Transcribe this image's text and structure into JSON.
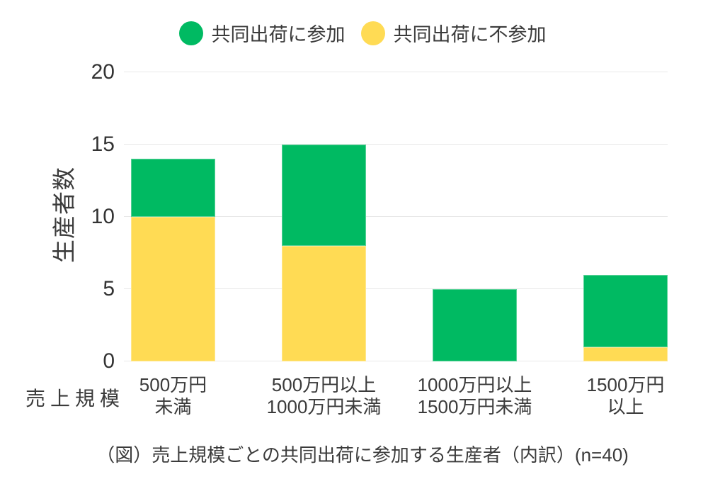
{
  "legend": {
    "items": [
      {
        "label": "共同出荷に参加",
        "color": "#00ba62"
      },
      {
        "label": "共同出荷に不参加",
        "color": "#ffdb54"
      }
    ]
  },
  "y_axis": {
    "title": "生産者数"
  },
  "x_axis": {
    "title": "売上規模"
  },
  "caption": "（図）売上規模ごとの共同出荷に参加する生産者（内訳）(n=40)",
  "chart_data": {
    "type": "bar",
    "stacked": true,
    "title": "（図）売上規模ごとの共同出荷に参加する生産者（内訳）(n=40)",
    "xlabel": "売上規模",
    "ylabel": "生産者数",
    "ylim": [
      0,
      20
    ],
    "yticks": [
      0,
      5,
      10,
      15,
      20
    ],
    "grid": true,
    "legend_position": "top",
    "n": 40,
    "categories": [
      [
        "500万円",
        "未満"
      ],
      [
        "500万円以上",
        "1000万円未満"
      ],
      [
        "1000万円以上",
        "1500万円未満"
      ],
      [
        "1500万円",
        "以上"
      ]
    ],
    "series": [
      {
        "name": "共同出荷に不参加",
        "key": "not-participate",
        "color": "#ffdb54",
        "values": [
          10,
          8,
          0,
          1
        ]
      },
      {
        "name": "共同出荷に参加",
        "key": "participate",
        "color": "#00ba62",
        "values": [
          4,
          7,
          5,
          5
        ]
      }
    ],
    "totals": [
      14,
      15,
      5,
      6
    ]
  }
}
